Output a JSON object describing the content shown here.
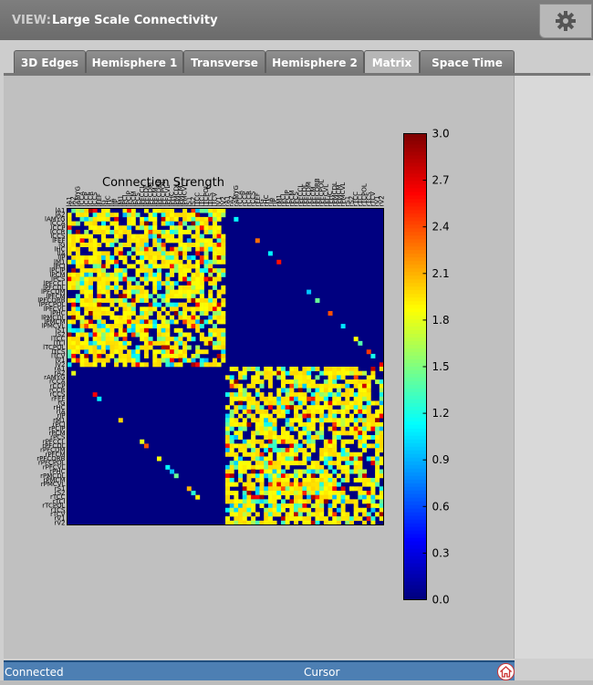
{
  "header": {
    "view_label": "VIEW:",
    "title": "Large Scale Connectivity",
    "settings_icon": "gear-icon"
  },
  "tabs": [
    {
      "label": "3D Edges",
      "active": false
    },
    {
      "label": "Hemisphere 1",
      "active": false
    },
    {
      "label": "Transverse",
      "active": false
    },
    {
      "label": "Hemisphere 2",
      "active": false
    },
    {
      "label": "Matrix",
      "active": true
    },
    {
      "label": "Space Time",
      "active": false
    }
  ],
  "status": {
    "left": "Connected",
    "middle": "Cursor",
    "home_icon": "home-icon"
  },
  "chart_data": {
    "type": "heatmap",
    "title": "Connection Strength",
    "row_labels": [
      "lA1",
      "lA2",
      "lAMYG",
      "lCCA",
      "lCCP",
      "lCCR",
      "lCCS",
      "lFEF",
      "lG",
      "lHC",
      "lIA",
      "lIP",
      "lM1",
      "lPCI",
      "lPCIP",
      "lPCM",
      "lPCS",
      "lPFCCL",
      "lPFCDL",
      "lPFCDM",
      "lPFCM",
      "lPFCORB",
      "lPFCPOL",
      "lPFCVL",
      "lPHC",
      "lPMCDL",
      "lPMCM",
      "lPMCVL",
      "lS1",
      "lS2",
      "lTCC",
      "lTCI",
      "lTCPOL",
      "lTCS",
      "lTCV",
      "lV1",
      "lV2",
      "rA1",
      "rA2",
      "rAMYG",
      "rCCA",
      "rCCP",
      "rCCR",
      "rCCS",
      "rFEF",
      "rG",
      "rHC",
      "rIA",
      "rIP",
      "rM1",
      "rPCI",
      "rPCIP",
      "rPCM",
      "rPCS",
      "rPFCCL",
      "rPFCDL",
      "rPFCDM",
      "rPFCM",
      "rPFCORB",
      "rPFCPOL",
      "rPFCVL",
      "rPHC",
      "rPMCDL",
      "rPMCM",
      "rPMCVL",
      "rS1",
      "rS2",
      "rTCC",
      "rTCI",
      "rTCPOL",
      "rTCS",
      "rTCV",
      "rV1",
      "rV2"
    ],
    "colorbar": {
      "min": 0.0,
      "max": 3.0,
      "ticks": [
        "3.0",
        "2.7",
        "2.4",
        "2.1",
        "1.8",
        "1.5",
        "1.2",
        "0.9",
        "0.6",
        "0.3",
        "0.0"
      ]
    },
    "colormap": "jet",
    "matrix_size": 74,
    "blocks": [
      {
        "rows": "lA1-lV2",
        "cols": "lA1-lV2",
        "description": "dense intra-left-hemisphere weights, mostly ~1.8-2.0 with scattered values 0.9-3.0"
      },
      {
        "rows": "rA1-rV2",
        "cols": "rA1-rV2",
        "description": "dense intra-right-hemisphere weights, mostly ~1.8-2.0 with scattered values 0.9-3.0"
      },
      {
        "rows": "lA1-lV2",
        "cols": "rA1-rV2",
        "description": "diagonal homotopic connections only, values 0.9-2.7"
      },
      {
        "rows": "rA1-rV2",
        "cols": "lA1-lV2",
        "description": "diagonal homotopic connections only, values 0.9-2.7"
      }
    ]
  }
}
